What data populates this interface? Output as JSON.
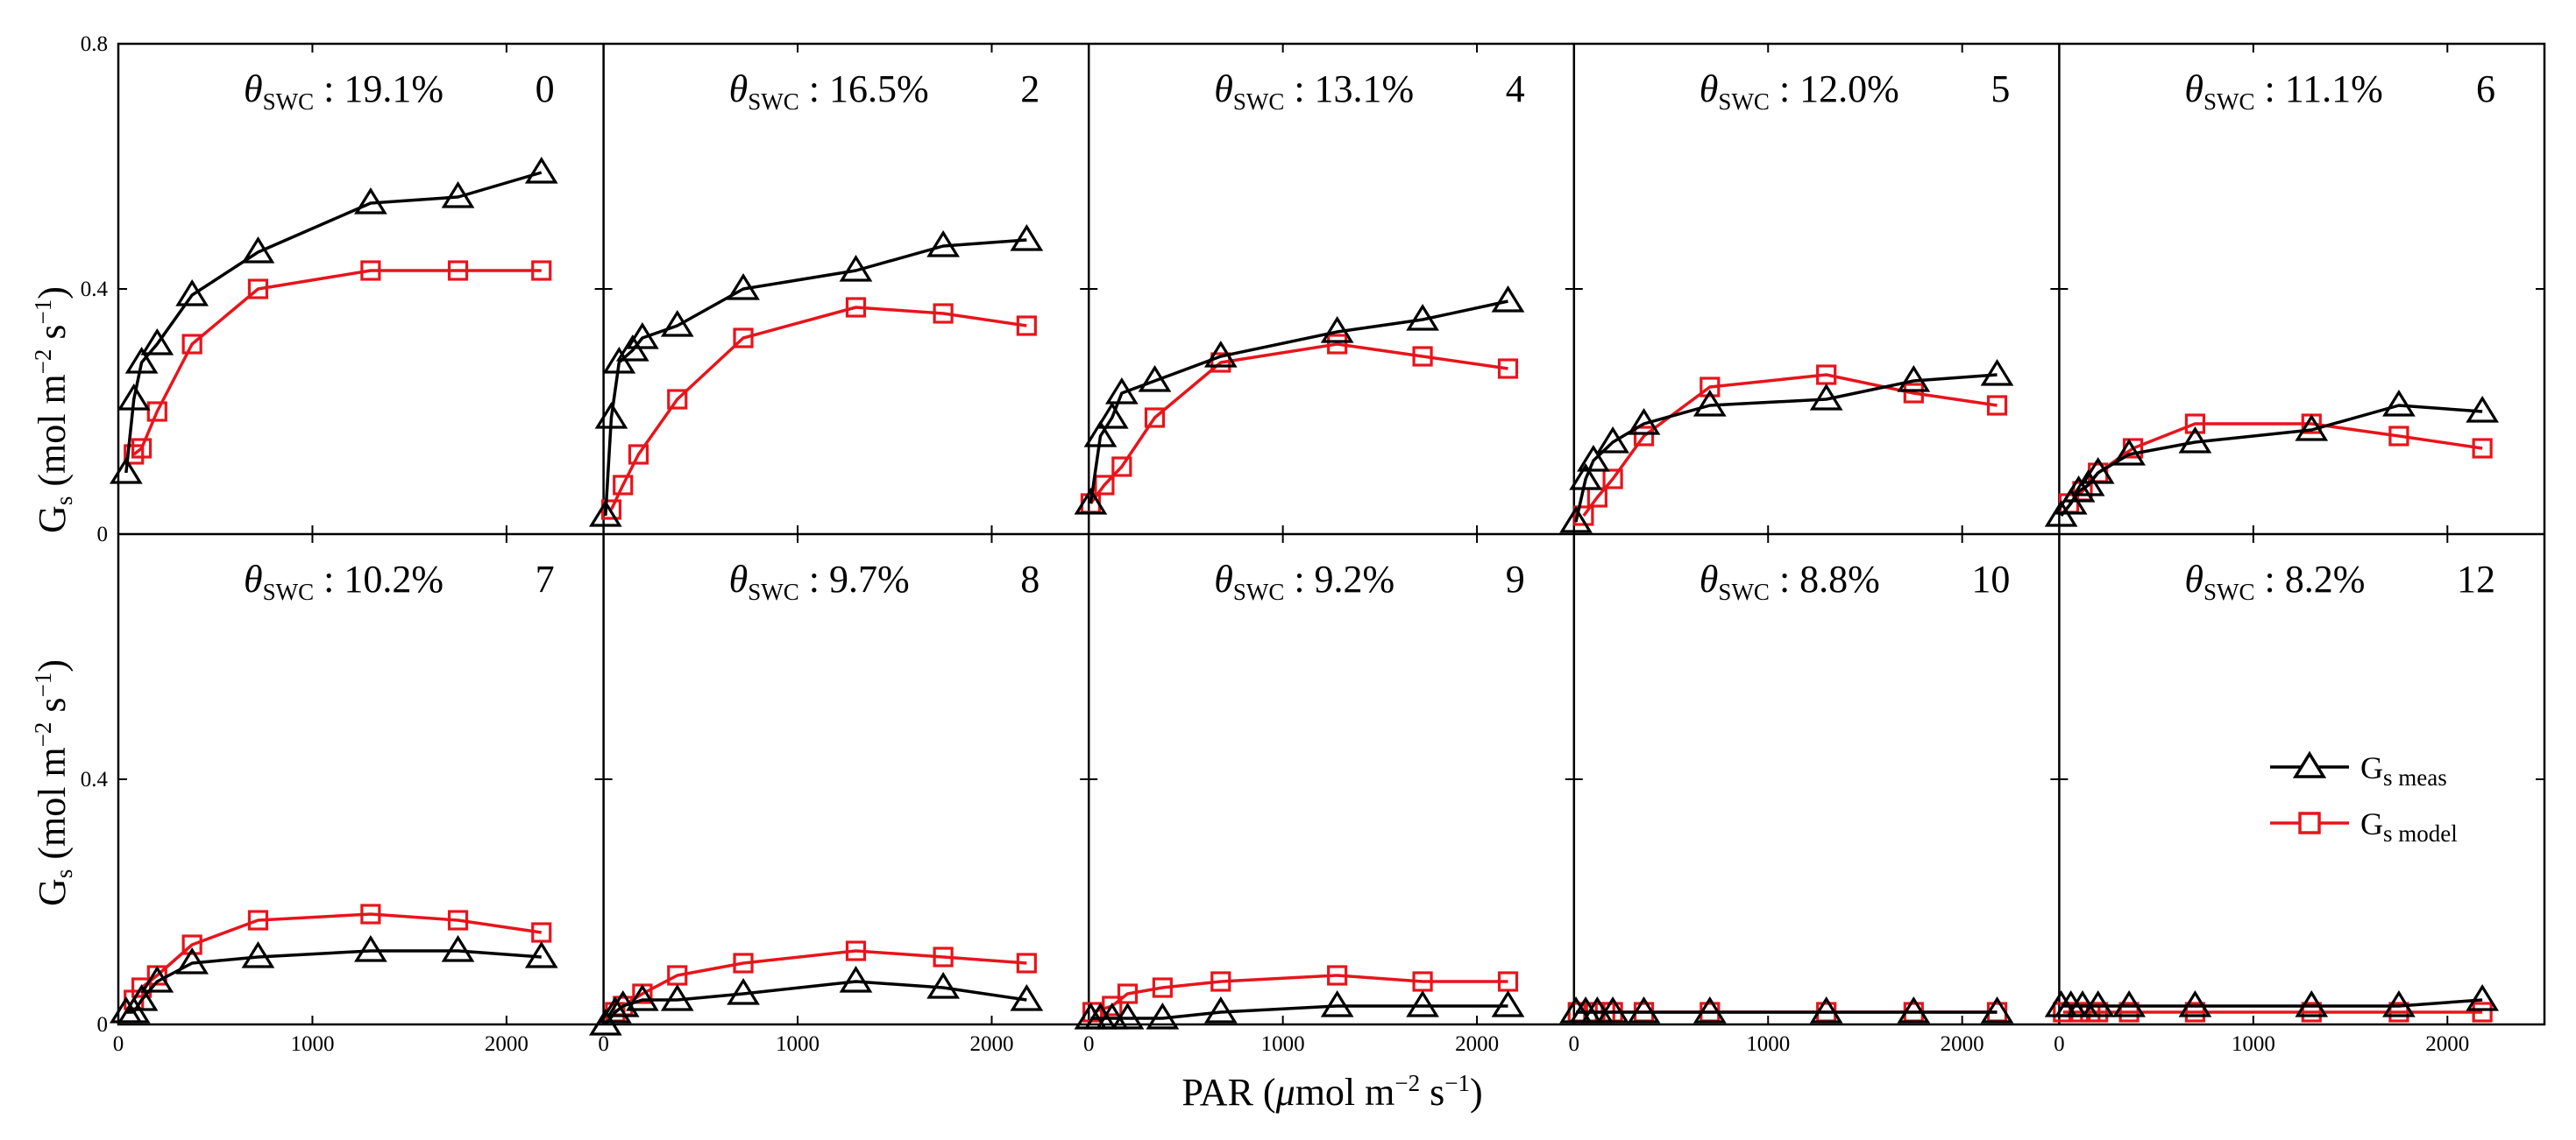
{
  "chart_data": {
    "type": "line",
    "layout": {
      "rows": 2,
      "cols": 5
    },
    "xlabel": {
      "main": "PAR (",
      "mu": "μ",
      "unit": "mol m",
      "exp": "−2",
      "unit2": " s",
      "exp2": "−1",
      "close": ")"
    },
    "ylabel": {
      "main": "G",
      "sub": "s",
      "unit": " (mol m",
      "exp": "−2",
      "unit2": " s",
      "exp2": "−1",
      "close": ")"
    },
    "xlim": [
      0,
      2500
    ],
    "ylim": [
      0,
      0.8
    ],
    "yticks": [
      {
        "value": 0,
        "label": "0"
      },
      {
        "value": 0.4,
        "label": "0.4"
      },
      {
        "value": 0.8,
        "label": "0.8"
      }
    ],
    "xticks": [
      {
        "value": 0,
        "label": "0"
      },
      {
        "value": 1000,
        "label": "1000"
      },
      {
        "value": 2000,
        "label": "2000"
      }
    ],
    "theta_symbol": "θ",
    "theta_sub": "SWC",
    "legend": {
      "position": "right",
      "entries": [
        {
          "key": "meas",
          "label_main": "G",
          "label_sub": "s meas"
        },
        {
          "key": "model",
          "label_main": "G",
          "label_sub": "s model"
        }
      ]
    },
    "colors": {
      "meas": "#000000",
      "model": "#e8141b"
    },
    "panels": [
      {
        "swc": " : 19.1%",
        "day": "0",
        "meas": {
          "x": [
            40,
            80,
            120,
            200,
            380,
            720,
            1300,
            1750,
            2180
          ],
          "y": [
            0.1,
            0.22,
            0.28,
            0.31,
            0.39,
            0.46,
            0.54,
            0.55,
            0.59
          ]
        },
        "model": {
          "x": [
            80,
            120,
            200,
            380,
            720,
            1300,
            1750,
            2180
          ],
          "y": [
            0.13,
            0.14,
            0.2,
            0.31,
            0.4,
            0.43,
            0.43,
            0.43
          ]
        }
      },
      {
        "swc": " : 16.5%",
        "day": "2",
        "meas": {
          "x": [
            10,
            40,
            80,
            150,
            200,
            380,
            720,
            1300,
            1750,
            2180
          ],
          "y": [
            0.03,
            0.19,
            0.28,
            0.3,
            0.32,
            0.34,
            0.4,
            0.43,
            0.47,
            0.48
          ]
        },
        "model": {
          "x": [
            40,
            100,
            180,
            380,
            720,
            1300,
            1750,
            2180
          ],
          "y": [
            0.04,
            0.08,
            0.13,
            0.22,
            0.32,
            0.37,
            0.36,
            0.34
          ]
        }
      },
      {
        "swc": " : 13.1%",
        "day": "4",
        "meas": {
          "x": [
            10,
            60,
            120,
            170,
            340,
            680,
            1280,
            1720,
            2160
          ],
          "y": [
            0.05,
            0.16,
            0.19,
            0.23,
            0.25,
            0.29,
            0.33,
            0.35,
            0.38
          ]
        },
        "model": {
          "x": [
            10,
            80,
            170,
            340,
            680,
            1280,
            1720,
            2160
          ],
          "y": [
            0.05,
            0.08,
            0.11,
            0.19,
            0.28,
            0.31,
            0.29,
            0.27
          ]
        }
      },
      {
        "swc": " : 12.0%",
        "day": "5",
        "meas": {
          "x": [
            10,
            60,
            100,
            200,
            360,
            700,
            1300,
            1750,
            2180
          ],
          "y": [
            0.02,
            0.09,
            0.12,
            0.15,
            0.18,
            0.21,
            0.22,
            0.25,
            0.26
          ]
        },
        "model": {
          "x": [
            50,
            120,
            200,
            360,
            700,
            1300,
            1750,
            2180
          ],
          "y": [
            0.03,
            0.06,
            0.09,
            0.16,
            0.24,
            0.26,
            0.23,
            0.21
          ]
        }
      },
      {
        "swc": " : 11.1%",
        "day": "6",
        "meas": {
          "x": [
            10,
            60,
            100,
            150,
            200,
            360,
            700,
            1300,
            1750,
            2180
          ],
          "y": [
            0.03,
            0.05,
            0.07,
            0.08,
            0.1,
            0.13,
            0.15,
            0.17,
            0.21,
            0.2
          ]
        },
        "model": {
          "x": [
            50,
            120,
            200,
            380,
            700,
            1300,
            1750,
            2180
          ],
          "y": [
            0.05,
            0.07,
            0.1,
            0.14,
            0.18,
            0.18,
            0.16,
            0.14
          ]
        }
      },
      {
        "swc": " : 10.2%",
        "day": "7",
        "meas": {
          "x": [
            40,
            80,
            120,
            200,
            380,
            720,
            1300,
            1750,
            2180
          ],
          "y": [
            0.02,
            0.02,
            0.04,
            0.07,
            0.1,
            0.11,
            0.12,
            0.12,
            0.11
          ]
        },
        "model": {
          "x": [
            80,
            120,
            200,
            380,
            720,
            1300,
            1750,
            2180
          ],
          "y": [
            0.04,
            0.06,
            0.08,
            0.13,
            0.17,
            0.18,
            0.17,
            0.15
          ]
        }
      },
      {
        "swc": " : 9.7%",
        "day": "8",
        "meas": {
          "x": [
            10,
            60,
            100,
            200,
            380,
            720,
            1300,
            1750,
            2180
          ],
          "y": [
            0.0,
            0.02,
            0.03,
            0.04,
            0.04,
            0.05,
            0.07,
            0.06,
            0.04
          ]
        },
        "model": {
          "x": [
            60,
            100,
            200,
            380,
            720,
            1300,
            1750,
            2180
          ],
          "y": [
            0.02,
            0.03,
            0.05,
            0.08,
            0.1,
            0.12,
            0.11,
            0.1
          ]
        }
      },
      {
        "swc": " : 9.2%",
        "day": "9",
        "meas": {
          "x": [
            10,
            60,
            120,
            200,
            380,
            680,
            1280,
            1720,
            2160
          ],
          "y": [
            0.01,
            0.01,
            0.01,
            0.01,
            0.01,
            0.02,
            0.03,
            0.03,
            0.03
          ]
        },
        "model": {
          "x": [
            20,
            120,
            200,
            380,
            680,
            1280,
            1720,
            2160
          ],
          "y": [
            0.02,
            0.03,
            0.05,
            0.06,
            0.07,
            0.08,
            0.07,
            0.07
          ]
        }
      },
      {
        "swc": " : 8.8%",
        "day": "10",
        "meas": {
          "x": [
            10,
            60,
            120,
            200,
            360,
            700,
            1300,
            1750,
            2180
          ],
          "y": [
            0.02,
            0.02,
            0.02,
            0.02,
            0.02,
            0.02,
            0.02,
            0.02,
            0.02
          ]
        },
        "model": {
          "x": [
            20,
            100,
            160,
            200,
            360,
            700,
            1300,
            1750,
            2180
          ],
          "y": [
            0.02,
            0.02,
            0.02,
            0.02,
            0.02,
            0.02,
            0.02,
            0.02,
            0.02
          ]
        }
      },
      {
        "swc": " : 8.2%",
        "day": "12",
        "meas": {
          "x": [
            10,
            60,
            120,
            200,
            360,
            700,
            1300,
            1750,
            2180
          ],
          "y": [
            0.03,
            0.03,
            0.03,
            0.03,
            0.03,
            0.03,
            0.03,
            0.03,
            0.04
          ]
        },
        "model": {
          "x": [
            20,
            100,
            160,
            200,
            360,
            700,
            1300,
            1750,
            2180
          ],
          "y": [
            0.02,
            0.02,
            0.02,
            0.02,
            0.02,
            0.02,
            0.02,
            0.02,
            0.02
          ]
        }
      }
    ]
  }
}
